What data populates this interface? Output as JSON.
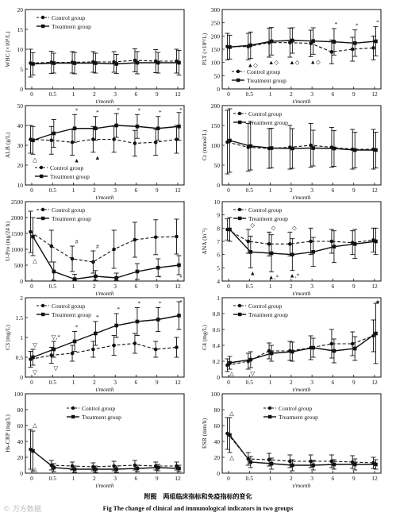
{
  "figure": {
    "caption_cn": "附图　两组临床指标和免疫指标的变化",
    "caption_en": "Fig    The change of clinical and immunological indicators in two groups",
    "watermark": "© 万方数据"
  },
  "chart_data": [
    {
      "type": "line",
      "ylabel": "WBC (×10⁹/L)",
      "xlabel": "t/month",
      "categories": [
        "0",
        "0.5",
        "1",
        "2",
        "3",
        "6",
        "9",
        "12"
      ],
      "ylim": [
        0,
        20
      ],
      "yticks": [
        0,
        5,
        10,
        15,
        20
      ],
      "legend": "top-left",
      "series": [
        {
          "name": "Control group",
          "values": [
            6.5,
            6.7,
            6.7,
            6.8,
            6.8,
            7.2,
            7.0,
            7.0
          ],
          "err": [
            3.5,
            2.8,
            2.7,
            2.6,
            2.6,
            2.9,
            2.9,
            3.0
          ]
        },
        {
          "name": "Treatment group",
          "values": [
            6.3,
            6.5,
            6.5,
            6.5,
            6.3,
            6.6,
            6.6,
            6.6
          ],
          "err": [
            2.8,
            2.5,
            2.7,
            2.5,
            2.4,
            2.8,
            2.6,
            3.1
          ]
        }
      ],
      "annotations": []
    },
    {
      "type": "line",
      "ylabel": "PLT (×10⁹/L)",
      "xlabel": "t/month",
      "categories": [
        "0",
        "0.5",
        "1",
        "2",
        "3",
        "6",
        "9",
        "12"
      ],
      "ylim": [
        0,
        300
      ],
      "yticks": [
        0,
        50,
        100,
        150,
        200,
        250,
        300
      ],
      "legend": "bottom-left",
      "series": [
        {
          "name": "Control group",
          "values": [
            160,
            160,
            175,
            175,
            172,
            140,
            150,
            155
          ],
          "err": [
            50,
            50,
            55,
            55,
            50,
            45,
            45,
            45
          ]
        },
        {
          "name": "Treatment group",
          "values": [
            158,
            165,
            180,
            183,
            181,
            178,
            173,
            180
          ],
          "err": [
            45,
            50,
            52,
            48,
            50,
            50,
            50,
            55
          ]
        }
      ],
      "annotations": [
        {
          "i": 1,
          "side": "below",
          "text": "▲◇"
        },
        {
          "i": 2,
          "side": "below",
          "text": "▲◇"
        },
        {
          "i": 3,
          "side": "below",
          "text": "▲◇"
        },
        {
          "i": 4,
          "side": "below",
          "text": "▲◇"
        },
        {
          "i": 5,
          "side": "above",
          "text": "*"
        },
        {
          "i": 6,
          "side": "above",
          "text": "*"
        },
        {
          "i": 7,
          "side": "above",
          "text": "*"
        }
      ]
    },
    {
      "type": "line",
      "ylabel": "ALB (g/L)",
      "xlabel": "t/month",
      "categories": [
        "0",
        "0.5",
        "1",
        "2",
        "3",
        "6",
        "9",
        "12"
      ],
      "ylim": [
        10,
        50
      ],
      "yticks": [
        10,
        20,
        30,
        40,
        50
      ],
      "legend": "bottom-left",
      "series": [
        {
          "name": "Control group",
          "values": [
            33,
            32.5,
            31.5,
            33,
            33,
            31,
            31.5,
            33
          ],
          "err": [
            7,
            7,
            6.5,
            6.5,
            6.5,
            6.5,
            6.5,
            7
          ]
        },
        {
          "name": "Treatment group",
          "values": [
            32.5,
            36,
            38.5,
            38.5,
            40,
            39.5,
            38.5,
            39.5
          ],
          "err": [
            7,
            7,
            7,
            6,
            6,
            6,
            6,
            7
          ]
        }
      ],
      "annotations": [
        {
          "i": 0,
          "side": "below",
          "text": "△"
        },
        {
          "i": 2,
          "side": "above",
          "text": "*"
        },
        {
          "i": 3,
          "side": "above",
          "text": "*"
        },
        {
          "i": 4,
          "side": "above",
          "text": "*"
        },
        {
          "i": 5,
          "side": "above",
          "text": "*"
        },
        {
          "i": 6,
          "side": "above",
          "text": "*"
        },
        {
          "i": 7,
          "side": "above",
          "text": "*"
        },
        {
          "i": 2,
          "side": "below",
          "text": "▲"
        },
        {
          "i": 3,
          "side": "below",
          "text": "▲"
        }
      ]
    },
    {
      "type": "line",
      "ylabel": "Cr (mmol/L)",
      "xlabel": "t/month",
      "categories": [
        "0",
        "0.5",
        "1",
        "2",
        "3",
        "6",
        "9",
        "12"
      ],
      "ylim": [
        0,
        200
      ],
      "yticks": [
        0,
        50,
        100,
        150,
        200
      ],
      "legend": "top-left",
      "series": [
        {
          "name": "Control group",
          "values": [
            108,
            95,
            92,
            95,
            100,
            95,
            90,
            90
          ],
          "err": [
            80,
            60,
            50,
            55,
            55,
            50,
            50,
            50
          ]
        },
        {
          "name": "Treatment group",
          "values": [
            112,
            98,
            93,
            92,
            93,
            92,
            88,
            88
          ],
          "err": [
            80,
            60,
            50,
            50,
            45,
            45,
            45,
            45
          ]
        }
      ],
      "annotations": []
    },
    {
      "type": "line",
      "ylabel": "U-Pro (mg/24 h)",
      "xlabel": "t/month",
      "categories": [
        "0",
        "0.5",
        "1",
        "2",
        "3",
        "6",
        "9",
        "12"
      ],
      "ylim": [
        0,
        2500
      ],
      "yticks": [
        0,
        500,
        1000,
        1500,
        2000,
        2500
      ],
      "legend": "top-left",
      "series": [
        {
          "name": "Control group",
          "values": [
            1550,
            1100,
            700,
            600,
            1000,
            1300,
            1380,
            1400
          ],
          "err": [
            650,
            500,
            400,
            350,
            600,
            550,
            550,
            550
          ]
        },
        {
          "name": "Treatment group",
          "values": [
            1400,
            300,
            60,
            150,
            100,
            300,
            420,
            500
          ],
          "err": [
            600,
            300,
            150,
            180,
            150,
            250,
            280,
            300
          ]
        }
      ],
      "annotations": [
        {
          "i": 0,
          "side": "below",
          "text": "△"
        },
        {
          "i": 2,
          "side": "above",
          "text": "#"
        },
        {
          "i": 3,
          "side": "above",
          "text": "#"
        },
        {
          "i": 6,
          "side": "below",
          "text": "*"
        },
        {
          "i": 7,
          "side": "below",
          "text": "*"
        }
      ]
    },
    {
      "type": "line",
      "ylabel": "ANA (lnˉ¹)",
      "xlabel": "t/month",
      "categories": [
        "0",
        "0.5",
        "1",
        "2",
        "3",
        "6",
        "9",
        "12"
      ],
      "ylim": [
        4,
        10
      ],
      "yticks": [
        4,
        5,
        6,
        7,
        8,
        9,
        10
      ],
      "legend": "top-left",
      "series": [
        {
          "name": "Control group",
          "values": [
            7.9,
            7.0,
            6.8,
            6.8,
            7.0,
            7.0,
            6.9,
            7.1
          ],
          "err": [
            0.8,
            0.9,
            0.9,
            0.9,
            1.0,
            0.9,
            0.9,
            0.9
          ]
        },
        {
          "name": "Treatment group",
          "values": [
            7.9,
            6.2,
            6.1,
            6.0,
            6.2,
            6.6,
            6.8,
            7.0
          ],
          "err": [
            0.9,
            1.2,
            1.4,
            1.2,
            1.1,
            1.2,
            1.1,
            1.0
          ]
        }
      ],
      "annotations": [
        {
          "i": 1,
          "side": "above",
          "text": "◇"
        },
        {
          "i": 2,
          "side": "above",
          "text": "◇"
        },
        {
          "i": 3,
          "side": "above",
          "text": "◇"
        },
        {
          "i": 1,
          "side": "below",
          "text": "▲"
        },
        {
          "i": 2,
          "side": "below",
          "text": "▲,*"
        },
        {
          "i": 3,
          "side": "below",
          "text": "▲,*"
        }
      ]
    },
    {
      "type": "line",
      "ylabel": "C3 (mg/L)",
      "xlabel": "t/month",
      "categories": [
        "0",
        "0.5",
        "1",
        "2",
        "3",
        "6",
        "9",
        "12"
      ],
      "ylim": [
        0,
        2.0
      ],
      "yticks": [
        0,
        0.5,
        1.0,
        1.5,
        2.0
      ],
      "legend": "top-left",
      "series": [
        {
          "name": "Control group",
          "values": [
            0.45,
            0.55,
            0.6,
            0.7,
            0.8,
            0.85,
            0.7,
            0.75
          ],
          "err": [
            0.2,
            0.2,
            0.2,
            0.2,
            0.25,
            0.25,
            0.2,
            0.25
          ]
        },
        {
          "name": "Treatment group",
          "values": [
            0.5,
            0.7,
            0.9,
            1.1,
            1.3,
            1.4,
            1.45,
            1.55
          ],
          "err": [
            0.2,
            0.2,
            0.25,
            0.3,
            0.3,
            0.35,
            0.3,
            0.35
          ]
        }
      ],
      "annotations": [
        {
          "i": 0,
          "side": "above",
          "text": "▽"
        },
        {
          "i": 0,
          "side": "below",
          "text": "▽"
        },
        {
          "i": 1,
          "side": "above",
          "text": "▽,*"
        },
        {
          "i": 1,
          "side": "below",
          "text": "▽"
        },
        {
          "i": 2,
          "side": "above",
          "text": "*"
        },
        {
          "i": 3,
          "side": "above",
          "text": "*"
        },
        {
          "i": 4,
          "side": "above",
          "text": "*"
        },
        {
          "i": 5,
          "side": "above",
          "text": "*"
        },
        {
          "i": 6,
          "side": "above",
          "text": "*"
        },
        {
          "i": 7,
          "side": "above",
          "text": "*"
        }
      ]
    },
    {
      "type": "line",
      "ylabel": "C4 (mg/L)",
      "xlabel": "t/month",
      "categories": [
        "0",
        "0.5",
        "1",
        "2",
        "3",
        "6",
        "9",
        "12"
      ],
      "ylim": [
        0,
        1.0
      ],
      "yticks": [
        0,
        0.2,
        0.4,
        0.6,
        0.8,
        1.0
      ],
      "legend": "top-left",
      "series": [
        {
          "name": "Control group",
          "values": [
            0.15,
            0.2,
            0.33,
            0.33,
            0.37,
            0.42,
            0.42,
            0.52
          ],
          "err": [
            0.08,
            0.1,
            0.1,
            0.12,
            0.15,
            0.18,
            0.15,
            0.2
          ]
        },
        {
          "name": "Treatment group",
          "values": [
            0.18,
            0.22,
            0.3,
            0.32,
            0.37,
            0.33,
            0.36,
            0.55
          ],
          "err": [
            0.08,
            0.1,
            0.1,
            0.12,
            0.12,
            0.15,
            0.15,
            0.38
          ]
        }
      ],
      "annotations": [
        {
          "i": 0,
          "side": "below",
          "text": "△"
        },
        {
          "i": 1,
          "side": "below",
          "text": "▽"
        },
        {
          "i": 7,
          "side": "above",
          "text": "★"
        }
      ]
    },
    {
      "type": "line",
      "ylabel": "Hs-CRP (mg/L)",
      "xlabel": "t/month",
      "categories": [
        "0",
        "0.5",
        "1",
        "2",
        "3",
        "6",
        "9",
        "12"
      ],
      "ylim": [
        0,
        100
      ],
      "yticks": [
        0,
        20,
        40,
        60,
        80,
        100
      ],
      "legend": "top-center",
      "series": [
        {
          "name": "Control group",
          "values": [
            30,
            10,
            9,
            8,
            9,
            10,
            9,
            9
          ],
          "err": [
            25,
            6,
            5,
            5,
            6,
            6,
            5,
            5
          ]
        },
        {
          "name": "Treatment group",
          "values": [
            28,
            7,
            5,
            5,
            5,
            6,
            7,
            6
          ],
          "err": [
            25,
            5,
            4,
            4,
            4,
            4,
            4,
            4
          ]
        }
      ],
      "annotations": [
        {
          "i": 0,
          "side": "above",
          "text": "△"
        },
        {
          "i": 0,
          "side": "below",
          "text": "△"
        }
      ]
    },
    {
      "type": "line",
      "ylabel": "ESR (mm/h)",
      "xlabel": "t/month",
      "categories": [
        "0",
        "0.5",
        "1",
        "2",
        "3",
        "6",
        "9",
        "12"
      ],
      "ylim": [
        0,
        100
      ],
      "yticks": [
        0,
        20,
        40,
        60,
        80,
        100
      ],
      "legend": "top-center",
      "series": [
        {
          "name": "Control group",
          "values": [
            50,
            18,
            17,
            15,
            15,
            15,
            14,
            13
          ],
          "err": [
            20,
            8,
            8,
            8,
            8,
            8,
            8,
            7
          ]
        },
        {
          "name": "Treatment group",
          "values": [
            48,
            14,
            12,
            10,
            10,
            11,
            11,
            11
          ],
          "err": [
            22,
            7,
            7,
            7,
            6,
            6,
            7,
            6
          ]
        }
      ],
      "annotations": [
        {
          "i": 0,
          "side": "above",
          "text": "△"
        },
        {
          "i": 0,
          "side": "below",
          "text": "△"
        }
      ]
    }
  ]
}
